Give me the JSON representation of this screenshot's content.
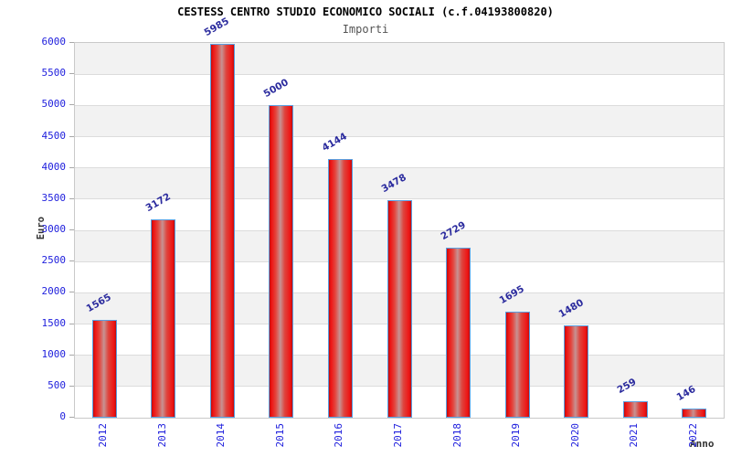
{
  "chart_data": {
    "type": "bar",
    "title": "CESTESS CENTRO STUDIO ECONOMICO SOCIALI (c.f.04193800820)",
    "subtitle": "Importi",
    "xlabel": "Anno",
    "ylabel": "Euro",
    "categories": [
      "2012",
      "2013",
      "2014",
      "2015",
      "2016",
      "2017",
      "2018",
      "2019",
      "2020",
      "2021",
      "2022"
    ],
    "values": [
      1565,
      3172,
      5985,
      5000,
      4144,
      3478,
      2729,
      1695,
      1480,
      259,
      146
    ],
    "value_labels": [
      "1565",
      "3172",
      "5985",
      "5000",
      "4144",
      "3478",
      "2729",
      "1695",
      "1480",
      "259",
      "146"
    ],
    "ylim": [
      0,
      6000
    ],
    "ytick_step": 500,
    "yticks": [
      0,
      500,
      1000,
      1500,
      2000,
      2500,
      3000,
      3500,
      4000,
      4500,
      5000,
      5500,
      6000
    ],
    "grid": "horizontal-bands-alternating",
    "legend": "none",
    "colors": {
      "bar_fill_edge": "#c00d0d",
      "bar_fill_main": "#ee1414",
      "bar_fill_highlight": "#c79292",
      "bar_border": "#5a9fe0",
      "tick_label": "#2020dd",
      "value_label": "#2b2b9e",
      "band_shade": "#f2f2f2",
      "band_plain": "#ffffff",
      "grid_line": "#dcdcdc",
      "axis_line": "#c9c9c9",
      "title": "#000000",
      "subtitle": "#555555",
      "axis_title": "#333333"
    }
  }
}
